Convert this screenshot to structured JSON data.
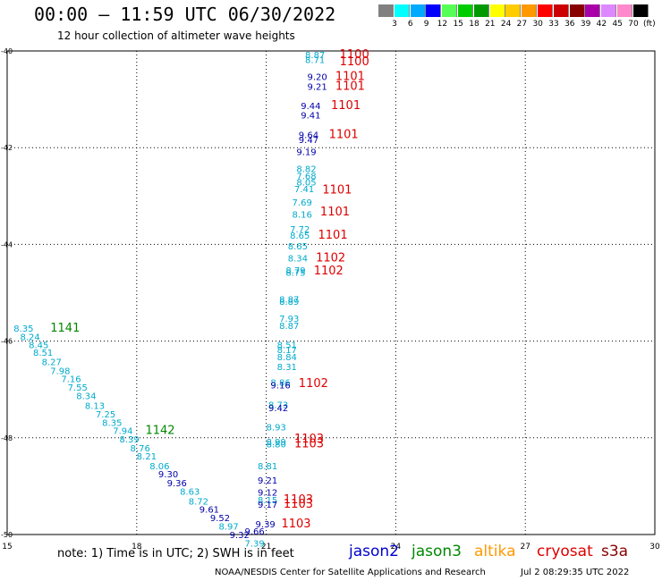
{
  "header": {
    "title": "00:00 — 11:59 UTC 06/30/2022",
    "subtitle": "12 hour collection of altimeter wave heights"
  },
  "colorbar": {
    "colors": [
      "#808080",
      "#00ffff",
      "#00aaff",
      "#0000ff",
      "#55ff55",
      "#00cc00",
      "#009900",
      "#ffff00",
      "#ffcc00",
      "#ff9900",
      "#ff0000",
      "#cc0000",
      "#880000",
      "#aa00aa",
      "#dd88ff",
      "#ff88cc",
      "#000000"
    ],
    "labels": [
      "3",
      "6",
      "9",
      "12",
      "15",
      "18",
      "21",
      "24",
      "27",
      "30",
      "33",
      "36",
      "39",
      "42",
      "45",
      "70",
      "(ft)"
    ]
  },
  "note": "note:  1) Time is in UTC;  2) SWH is in feet",
  "legend": [
    {
      "name": "jason2",
      "color": "#0000cc"
    },
    {
      "name": "jason3",
      "color": "#008800"
    },
    {
      "name": "altika",
      "color": "#ff9900"
    },
    {
      "name": "cryosat",
      "color": "#dd0000"
    },
    {
      "name": "s3a",
      "color": "#880000"
    }
  ],
  "footer": {
    "left": "NOAA/NESDIS Center for Satellite Applications and Research",
    "right": "Jul  2 08:29:35 UTC 2022"
  },
  "chart_data": {
    "type": "scatter",
    "title": "00:00 — 11:59 UTC 06/30/2022",
    "xlim": [
      15,
      30
    ],
    "ylim": [
      -50,
      -40
    ],
    "x_ticks": [
      "15",
      "18",
      "21",
      "24",
      "27",
      "30"
    ],
    "y_ticks": [
      "-40",
      "-42",
      "-44",
      "-46",
      "-48",
      "-50"
    ],
    "grid": true,
    "points": [
      {
        "x": 21.9,
        "y": -40.15,
        "label": "8.87",
        "color": "#00aacc"
      },
      {
        "x": 21.9,
        "y": -40.25,
        "label": "8.71",
        "color": "#00aacc"
      },
      {
        "x": 22.7,
        "y": -40.15,
        "label": "1100",
        "color": "#dd0000",
        "big": true
      },
      {
        "x": 22.7,
        "y": -40.3,
        "label": "1100",
        "color": "#dd0000",
        "big": true
      },
      {
        "x": 21.95,
        "y": -40.6,
        "label": "9.20",
        "color": "#0000aa"
      },
      {
        "x": 22.6,
        "y": -40.6,
        "label": "1101",
        "color": "#dd0000",
        "big": true
      },
      {
        "x": 21.95,
        "y": -40.8,
        "label": "9.21",
        "color": "#0000aa"
      },
      {
        "x": 22.6,
        "y": -40.8,
        "label": "1101",
        "color": "#dd0000",
        "big": true
      },
      {
        "x": 21.8,
        "y": -41.2,
        "label": "9.44",
        "color": "#0000aa"
      },
      {
        "x": 22.5,
        "y": -41.2,
        "label": "1101",
        "color": "#dd0000",
        "big": true
      },
      {
        "x": 21.8,
        "y": -41.4,
        "label": "9.41",
        "color": "#0000aa"
      },
      {
        "x": 21.75,
        "y": -41.8,
        "label": "9.64",
        "color": "#0000aa"
      },
      {
        "x": 21.75,
        "y": -41.9,
        "label": "9.47",
        "color": "#0000aa"
      },
      {
        "x": 22.45,
        "y": -41.8,
        "label": "1101",
        "color": "#dd0000",
        "big": true
      },
      {
        "x": 21.7,
        "y": -42.15,
        "label": "9.19",
        "color": "#0000aa"
      },
      {
        "x": 21.7,
        "y": -42.5,
        "label": "8.82",
        "color": "#00aacc"
      },
      {
        "x": 21.7,
        "y": -42.65,
        "label": "7.68",
        "color": "#00aacc"
      },
      {
        "x": 21.7,
        "y": -42.78,
        "label": "8.05",
        "color": "#00aacc"
      },
      {
        "x": 21.65,
        "y": -42.92,
        "label": "7.41",
        "color": "#00aacc"
      },
      {
        "x": 22.3,
        "y": -42.95,
        "label": "1101",
        "color": "#dd0000",
        "big": true
      },
      {
        "x": 21.6,
        "y": -43.2,
        "label": "7.69",
        "color": "#00aacc"
      },
      {
        "x": 21.6,
        "y": -43.45,
        "label": "8.16",
        "color": "#00aacc"
      },
      {
        "x": 22.25,
        "y": -43.4,
        "label": "1101",
        "color": "#dd0000",
        "big": true
      },
      {
        "x": 21.55,
        "y": -43.75,
        "label": "7.72",
        "color": "#00aacc"
      },
      {
        "x": 21.55,
        "y": -43.88,
        "label": "8.65",
        "color": "#00aacc"
      },
      {
        "x": 22.2,
        "y": -43.88,
        "label": "1101",
        "color": "#dd0000",
        "big": true
      },
      {
        "x": 21.5,
        "y": -44.1,
        "label": "8.65",
        "color": "#00aacc"
      },
      {
        "x": 21.5,
        "y": -44.35,
        "label": "8.34",
        "color": "#00aacc"
      },
      {
        "x": 22.15,
        "y": -44.35,
        "label": "1102",
        "color": "#dd0000",
        "big": true
      },
      {
        "x": 21.45,
        "y": -44.6,
        "label": "8.79",
        "color": "#00aacc"
      },
      {
        "x": 21.45,
        "y": -44.65,
        "label": "8.75",
        "color": "#00aacc"
      },
      {
        "x": 22.1,
        "y": -44.62,
        "label": "1102",
        "color": "#dd0000",
        "big": true
      },
      {
        "x": 21.3,
        "y": -45.2,
        "label": "8.87",
        "color": "#00aacc"
      },
      {
        "x": 21.3,
        "y": -45.25,
        "label": "8.89",
        "color": "#00aacc"
      },
      {
        "x": 21.3,
        "y": -45.6,
        "label": "7.93",
        "color": "#00aacc"
      },
      {
        "x": 21.3,
        "y": -45.75,
        "label": "8.87",
        "color": "#00aacc"
      },
      {
        "x": 21.25,
        "y": -46.15,
        "label": "8.51",
        "color": "#00aacc"
      },
      {
        "x": 21.25,
        "y": -46.25,
        "label": "8.17",
        "color": "#00aacc"
      },
      {
        "x": 21.25,
        "y": -46.4,
        "label": "8.84",
        "color": "#00aacc"
      },
      {
        "x": 21.25,
        "y": -46.6,
        "label": "8.31",
        "color": "#00aacc"
      },
      {
        "x": 21.1,
        "y": -46.92,
        "label": "8.86",
        "color": "#00aacc"
      },
      {
        "x": 21.1,
        "y": -46.98,
        "label": "9.16",
        "color": "#0000aa"
      },
      {
        "x": 21.75,
        "y": -46.95,
        "label": "1102",
        "color": "#dd0000",
        "big": true
      },
      {
        "x": 21.05,
        "y": -47.38,
        "label": "8.73",
        "color": "#00aacc"
      },
      {
        "x": 21.05,
        "y": -47.45,
        "label": "9.42",
        "color": "#0000aa"
      },
      {
        "x": 21.0,
        "y": -47.85,
        "label": "8.93",
        "color": "#00aacc"
      },
      {
        "x": 21.0,
        "y": -48.15,
        "label": "8.99",
        "color": "#00aacc"
      },
      {
        "x": 21.0,
        "y": -48.2,
        "label": "8.80",
        "color": "#00aacc"
      },
      {
        "x": 21.65,
        "y": -48.1,
        "label": "1103",
        "color": "#dd0000",
        "big": true
      },
      {
        "x": 21.65,
        "y": -48.2,
        "label": "1103",
        "color": "#dd0000",
        "big": true
      },
      {
        "x": 20.8,
        "y": -48.65,
        "label": "8.81",
        "color": "#00aacc"
      },
      {
        "x": 20.8,
        "y": -48.95,
        "label": "9.21",
        "color": "#0000aa"
      },
      {
        "x": 20.8,
        "y": -49.2,
        "label": "9.12",
        "color": "#0000aa"
      },
      {
        "x": 20.8,
        "y": -49.35,
        "label": "8.15",
        "color": "#00aacc"
      },
      {
        "x": 20.8,
        "y": -49.45,
        "label": "9.17",
        "color": "#0000aa"
      },
      {
        "x": 21.4,
        "y": -49.35,
        "label": "1103",
        "color": "#dd0000",
        "big": true
      },
      {
        "x": 21.4,
        "y": -49.45,
        "label": "1103",
        "color": "#dd0000",
        "big": true
      },
      {
        "x": 20.75,
        "y": -49.85,
        "label": "9.39",
        "color": "#0000aa"
      },
      {
        "x": 21.35,
        "y": -49.85,
        "label": "1103",
        "color": "#dd0000",
        "big": true
      },
      {
        "x": 20.5,
        "y": -50.0,
        "label": "9.66",
        "color": "#0000aa"
      },
      {
        "x": 15.15,
        "y": -45.8,
        "label": "8.35",
        "color": "#00aacc"
      },
      {
        "x": 16.0,
        "y": -45.8,
        "label": "1141",
        "color": "#008800",
        "big": true
      },
      {
        "x": 15.3,
        "y": -45.98,
        "label": "8.24",
        "color": "#00aacc"
      },
      {
        "x": 15.5,
        "y": -46.15,
        "label": "8.45",
        "color": "#00aacc"
      },
      {
        "x": 15.6,
        "y": -46.3,
        "label": "8.51",
        "color": "#00aacc"
      },
      {
        "x": 15.8,
        "y": -46.5,
        "label": "8.27",
        "color": "#00aacc"
      },
      {
        "x": 16.0,
        "y": -46.68,
        "label": "7.98",
        "color": "#00aacc"
      },
      {
        "x": 16.25,
        "y": -46.85,
        "label": "7.16",
        "color": "#00aacc"
      },
      {
        "x": 16.4,
        "y": -47.02,
        "label": "7.55",
        "color": "#00aacc"
      },
      {
        "x": 16.6,
        "y": -47.2,
        "label": "8.34",
        "color": "#00aacc"
      },
      {
        "x": 16.8,
        "y": -47.4,
        "label": "8.13",
        "color": "#00aacc"
      },
      {
        "x": 17.05,
        "y": -47.58,
        "label": "7.25",
        "color": "#00aacc"
      },
      {
        "x": 17.2,
        "y": -47.75,
        "label": "8.35",
        "color": "#00aacc"
      },
      {
        "x": 17.45,
        "y": -47.92,
        "label": "7.94",
        "color": "#00aacc"
      },
      {
        "x": 18.2,
        "y": -47.92,
        "label": "1142",
        "color": "#008800",
        "big": true
      },
      {
        "x": 17.6,
        "y": -48.1,
        "label": "8.39",
        "color": "#00aacc"
      },
      {
        "x": 17.85,
        "y": -48.28,
        "label": "8.76",
        "color": "#00aacc"
      },
      {
        "x": 18.0,
        "y": -48.45,
        "label": "8.21",
        "color": "#00aacc"
      },
      {
        "x": 18.3,
        "y": -48.65,
        "label": "8.06",
        "color": "#00aacc"
      },
      {
        "x": 18.5,
        "y": -48.82,
        "label": "9.30",
        "color": "#0000aa"
      },
      {
        "x": 18.7,
        "y": -49.0,
        "label": "9.36",
        "color": "#0000aa"
      },
      {
        "x": 19.0,
        "y": -49.18,
        "label": "8.63",
        "color": "#00aacc"
      },
      {
        "x": 19.2,
        "y": -49.38,
        "label": "8.72",
        "color": "#00aacc"
      },
      {
        "x": 19.45,
        "y": -49.55,
        "label": "9.61",
        "color": "#0000aa"
      },
      {
        "x": 19.7,
        "y": -49.72,
        "label": "9.52",
        "color": "#0000aa"
      },
      {
        "x": 19.9,
        "y": -49.9,
        "label": "8.97",
        "color": "#00aacc"
      },
      {
        "x": 20.15,
        "y": -50.07,
        "label": "9.32",
        "color": "#0000aa"
      },
      {
        "x": 20.5,
        "y": -50.25,
        "label": "7.39",
        "color": "#00aacc"
      }
    ]
  }
}
